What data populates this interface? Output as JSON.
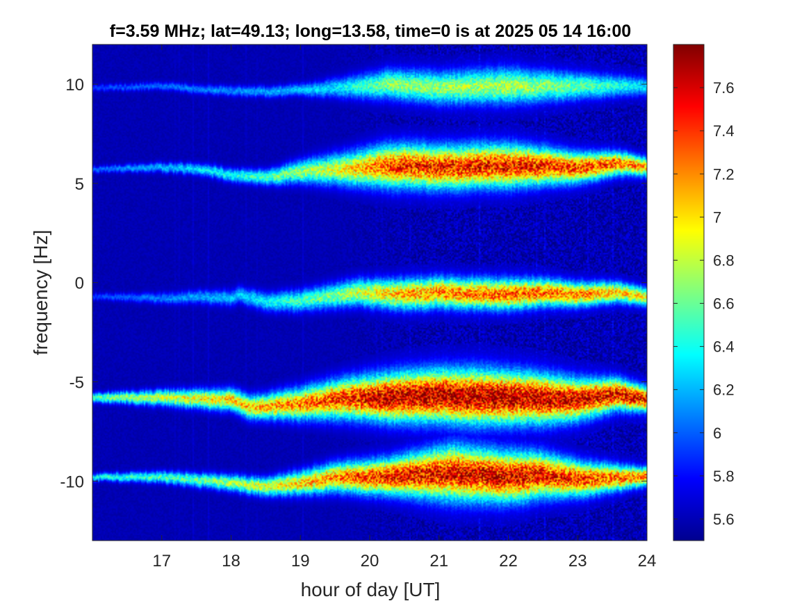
{
  "chart_data": {
    "type": "heatmap",
    "title": "f=3.59 MHz;  lat=49.13; long=13.58, time=0 is at 2025 05 14 16:00",
    "xlabel": "hour of day [UT]",
    "ylabel": "frequency [Hz]",
    "xlim": [
      16,
      24
    ],
    "ylim": [
      -13,
      12
    ],
    "x_ticks": [
      "17",
      "18",
      "19",
      "20",
      "21",
      "22",
      "23",
      "24"
    ],
    "x_tick_values": [
      17,
      18,
      19,
      20,
      21,
      22,
      23,
      24
    ],
    "y_ticks": [
      "-10",
      "-5",
      "0",
      "5",
      "10"
    ],
    "y_tick_values": [
      -10,
      -5,
      0,
      5,
      10
    ],
    "colorbar": {
      "limits": [
        5.5,
        7.8
      ],
      "ticks": [
        "5.6",
        "5.8",
        "6",
        "6.2",
        "6.4",
        "6.6",
        "6.8",
        "7",
        "7.2",
        "7.4",
        "7.6"
      ],
      "tick_values": [
        5.6,
        5.8,
        6.0,
        6.2,
        6.4,
        6.6,
        6.8,
        7.0,
        7.2,
        7.4,
        7.6
      ],
      "colormap": "jet"
    },
    "background_value": 5.55,
    "bands": [
      {
        "center_frequency_hz": 9.8,
        "track": [
          [
            16.0,
            9.8
          ],
          [
            17.0,
            9.9
          ],
          [
            17.7,
            9.7
          ],
          [
            18.5,
            9.6
          ],
          [
            19.0,
            9.7
          ],
          [
            20.0,
            9.9
          ],
          [
            20.3,
            10.0
          ],
          [
            21.0,
            9.8
          ],
          [
            22.0,
            9.9
          ],
          [
            23.0,
            9.9
          ],
          [
            24.0,
            9.9
          ]
        ],
        "peak": [
          [
            16.0,
            5.9
          ],
          [
            18.0,
            6.1
          ],
          [
            19.5,
            6.3
          ],
          [
            20.3,
            6.7
          ],
          [
            22.0,
            6.8
          ],
          [
            23.0,
            6.6
          ],
          [
            24.0,
            6.3
          ]
        ],
        "spread_hz": [
          [
            16.0,
            0.1
          ],
          [
            19.0,
            0.2
          ],
          [
            20.3,
            0.5
          ],
          [
            22.0,
            0.6
          ],
          [
            24.0,
            0.3
          ]
        ]
      },
      {
        "center_frequency_hz": 5.7,
        "track": [
          [
            16.0,
            5.7
          ],
          [
            17.0,
            5.8
          ],
          [
            17.6,
            5.7
          ],
          [
            18.0,
            5.4
          ],
          [
            18.5,
            5.3
          ],
          [
            19.0,
            5.6
          ],
          [
            20.0,
            5.8
          ],
          [
            20.5,
            5.9
          ],
          [
            21.0,
            5.8
          ],
          [
            22.0,
            5.9
          ],
          [
            23.0,
            5.8
          ],
          [
            23.6,
            6.0
          ],
          [
            24.0,
            5.8
          ]
        ],
        "peak": [
          [
            16.0,
            6.0
          ],
          [
            18.0,
            6.4
          ],
          [
            19.5,
            6.9
          ],
          [
            20.4,
            7.5
          ],
          [
            22.0,
            7.6
          ],
          [
            23.6,
            7.4
          ],
          [
            24.0,
            7.2
          ]
        ],
        "spread_hz": [
          [
            16.0,
            0.1
          ],
          [
            18.5,
            0.25
          ],
          [
            20.3,
            0.7
          ],
          [
            22.0,
            0.7
          ],
          [
            24.0,
            0.3
          ]
        ]
      },
      {
        "center_frequency_hz": -0.7,
        "track": [
          [
            16.0,
            -0.7
          ],
          [
            17.0,
            -0.8
          ],
          [
            17.5,
            -0.7
          ],
          [
            18.0,
            -0.8
          ],
          [
            18.1,
            -0.6
          ],
          [
            18.5,
            -1.0
          ],
          [
            19.0,
            -0.9
          ],
          [
            19.8,
            -0.5
          ],
          [
            20.5,
            -0.6
          ],
          [
            21.0,
            -0.5
          ],
          [
            22.0,
            -0.6
          ],
          [
            22.5,
            -0.5
          ],
          [
            23.0,
            -0.6
          ],
          [
            23.5,
            -0.5
          ],
          [
            24.0,
            -0.7
          ]
        ],
        "peak": [
          [
            16.0,
            5.9
          ],
          [
            18.0,
            6.2
          ],
          [
            19.5,
            6.7
          ],
          [
            20.5,
            7.2
          ],
          [
            22.0,
            7.4
          ],
          [
            23.0,
            7.3
          ],
          [
            24.0,
            7.0
          ]
        ],
        "spread_hz": [
          [
            16.0,
            0.1
          ],
          [
            18.5,
            0.3
          ],
          [
            20.5,
            0.5
          ],
          [
            22.0,
            0.5
          ],
          [
            24.0,
            0.3
          ]
        ]
      },
      {
        "center_frequency_hz": -5.7,
        "track": [
          [
            16.0,
            -5.8
          ],
          [
            17.0,
            -5.8
          ],
          [
            18.0,
            -5.9
          ],
          [
            18.3,
            -6.3
          ],
          [
            19.0,
            -6.1
          ],
          [
            19.5,
            -5.9
          ],
          [
            20.0,
            -5.8
          ],
          [
            21.0,
            -5.7
          ],
          [
            22.0,
            -5.8
          ],
          [
            23.0,
            -5.9
          ],
          [
            23.6,
            -5.6
          ],
          [
            24.0,
            -5.9
          ]
        ],
        "peak": [
          [
            16.0,
            6.6
          ],
          [
            17.5,
            7.0
          ],
          [
            19.0,
            7.3
          ],
          [
            20.3,
            7.8
          ],
          [
            22.0,
            7.8
          ],
          [
            23.0,
            7.7
          ],
          [
            24.0,
            7.6
          ]
        ],
        "spread_hz": [
          [
            16.0,
            0.15
          ],
          [
            18.5,
            0.4
          ],
          [
            20.4,
            0.8
          ],
          [
            21.5,
            0.9
          ],
          [
            22.5,
            0.8
          ],
          [
            24.0,
            0.4
          ]
        ]
      },
      {
        "center_frequency_hz": -9.8,
        "track": [
          [
            16.0,
            -9.8
          ],
          [
            17.0,
            -9.8
          ],
          [
            18.0,
            -10.1
          ],
          [
            18.5,
            -10.3
          ],
          [
            19.0,
            -10.1
          ],
          [
            19.5,
            -9.8
          ],
          [
            20.0,
            -9.8
          ],
          [
            21.2,
            -9.6
          ],
          [
            22.0,
            -9.8
          ],
          [
            22.5,
            -9.7
          ],
          [
            23.0,
            -9.9
          ],
          [
            24.0,
            -9.8
          ]
        ],
        "peak": [
          [
            16.0,
            6.4
          ],
          [
            17.5,
            6.6
          ],
          [
            19.0,
            7.1
          ],
          [
            20.3,
            7.6
          ],
          [
            22.0,
            7.7
          ],
          [
            23.0,
            7.5
          ],
          [
            24.0,
            7.3
          ]
        ],
        "spread_hz": [
          [
            16.0,
            0.12
          ],
          [
            18.5,
            0.3
          ],
          [
            20.3,
            0.6
          ],
          [
            21.2,
            0.9
          ],
          [
            22.2,
            0.8
          ],
          [
            24.0,
            0.3
          ]
        ]
      }
    ]
  }
}
